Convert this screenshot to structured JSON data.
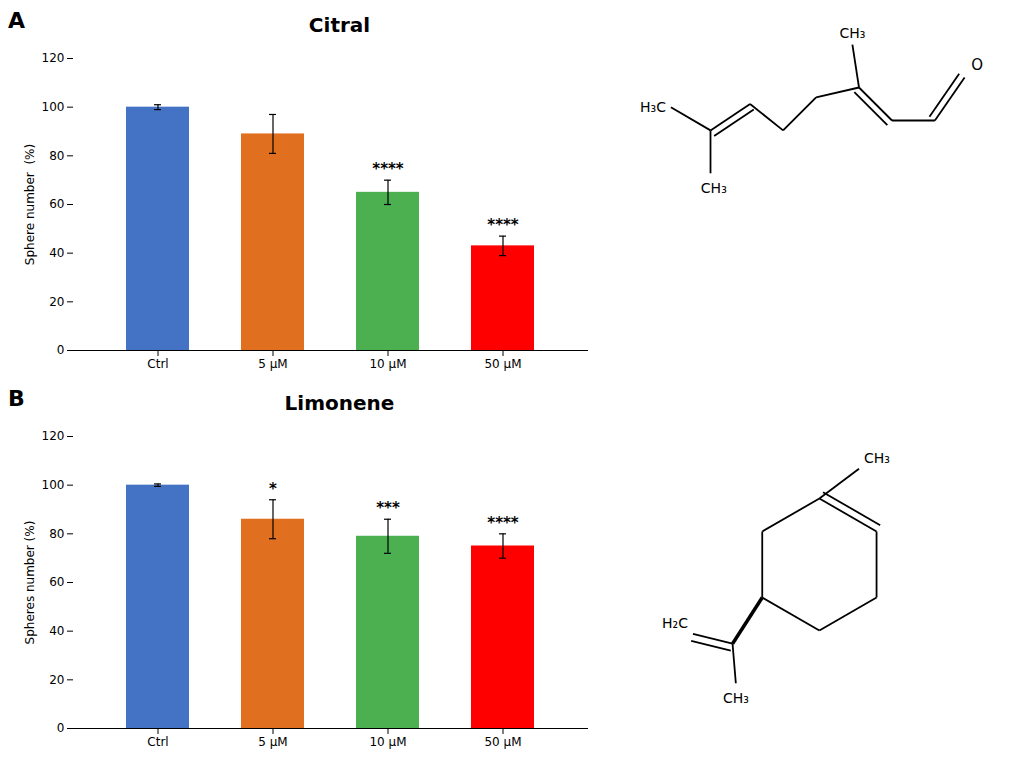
{
  "chart_data": [
    {
      "type": "bar",
      "title": "Citral",
      "ylabel": "Sphere number  (%)",
      "categories": [
        "Ctrl",
        "5 μM",
        "10 μM",
        "50 μM"
      ],
      "values": [
        100,
        89,
        65,
        43
      ],
      "errors": [
        1,
        8,
        5,
        4
      ],
      "colors": [
        "#4472C4",
        "#E07020",
        "#4CAF50",
        "#FF0000"
      ],
      "significance": [
        null,
        null,
        "****",
        "****"
      ],
      "ylim": [
        0,
        120
      ],
      "yticks": [
        0,
        20,
        40,
        60,
        80,
        100,
        120
      ],
      "grid": false,
      "annotations": [
        "A",
        "O",
        "CH₃",
        "H₃C",
        "CH₃"
      ]
    },
    {
      "type": "bar",
      "title": "Limonene",
      "ylabel": "Spheres number (%)",
      "categories": [
        "Ctrl",
        "5 μM",
        "10 μM",
        "50 μM"
      ],
      "values": [
        100,
        86,
        79,
        75
      ],
      "errors": [
        0.5,
        8,
        7,
        5
      ],
      "colors": [
        "#4472C4",
        "#E07020",
        "#4CAF50",
        "#FF0000"
      ],
      "significance": [
        null,
        "*",
        "***",
        "****"
      ],
      "ylim": [
        0,
        120
      ],
      "yticks": [
        0,
        20,
        40,
        60,
        80,
        100,
        120
      ],
      "grid": false,
      "annotations": [
        "B",
        "CH₃",
        "H₂C",
        "CH₃"
      ]
    }
  ]
}
